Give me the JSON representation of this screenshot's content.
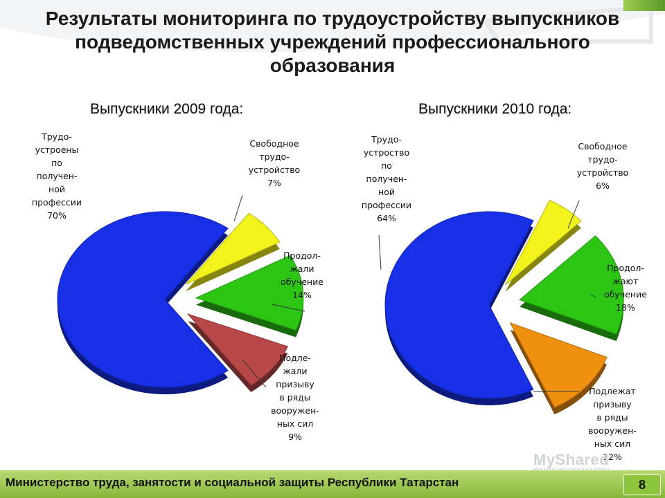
{
  "slide": {
    "title": "Результаты мониторинга по трудоустройству выпускников подведомственных учреждений профессионального образования",
    "footer": "Министерство труда, занятости и социальной защиты Республики Татарстан",
    "page_number": "8",
    "watermark": "MyShared"
  },
  "chart_data": [
    {
      "type": "pie",
      "title": "Выпускники 2009 года:",
      "slices": [
        {
          "label": "Трудо-\nустроены\nпо\nполучен-\nной\nпрофессии\n70%",
          "value": 70,
          "color": "#1730e6"
        },
        {
          "label": "Свободное\nтрудо-\nустройство\n7%",
          "value": 7,
          "color": "#f2f21c"
        },
        {
          "label": "Продол-\nжали\nобучение\n14%",
          "value": 14,
          "color": "#2cc514"
        },
        {
          "label": "Подле-\nжали\nпризыву\nв ряды\nвооружен-\nных сил\n9%",
          "value": 9,
          "color": "#b84848"
        }
      ]
    },
    {
      "type": "pie",
      "title": "Выпускники 2010 года:",
      "slices": [
        {
          "label": "Трудо-\nустроство\nпо\nполучен-\nной\nпрофессии\n64%",
          "value": 64,
          "color": "#1730e6"
        },
        {
          "label": "Свободное\nтрудо-\nустройство\n6%",
          "value": 6,
          "color": "#f2f21c"
        },
        {
          "label": "Продол-\nжают\nобучение\n18%",
          "value": 18,
          "color": "#2cc514"
        },
        {
          "label": "Подлежат\nпризыву\nв ряды\nвооружен-\nных сил\n12%",
          "value": 12,
          "color": "#f09010"
        }
      ]
    }
  ]
}
